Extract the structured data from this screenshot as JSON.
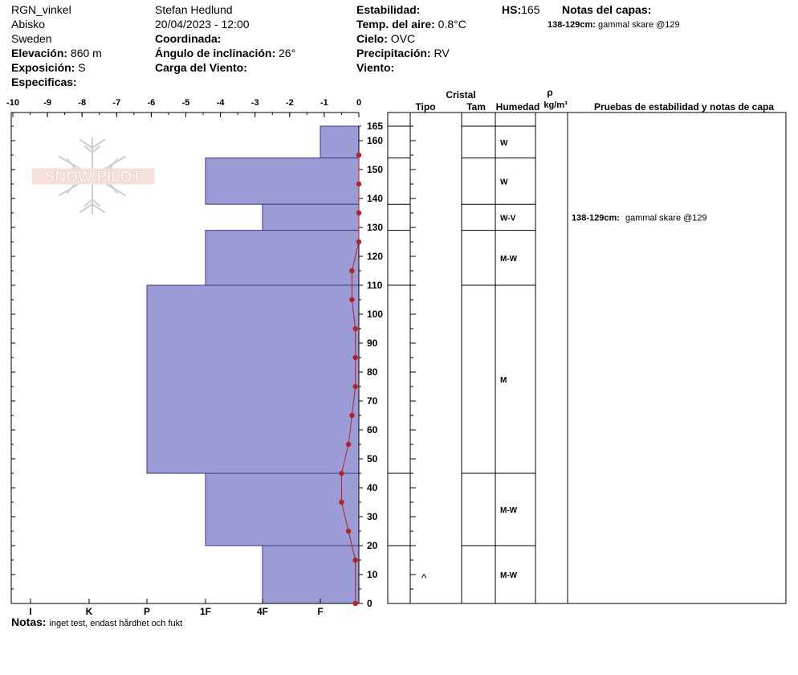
{
  "header": {
    "col1": {
      "location": "RGN_vinkel",
      "region": "Abisko",
      "country": "Sweden",
      "elevation_label": "Elevación:",
      "elevation_value": "860 m",
      "aspect_label": "Exposición:",
      "aspect_value": "S",
      "specifics_label": "Especificas:"
    },
    "col2": {
      "observer": "Stefan Hedlund",
      "datetime": "20/04/2023 - 12:00",
      "coordinates_label": "Coordinada:",
      "slope_label": "Ángulo de inclinación:",
      "slope_value": "26°",
      "wind_load_label": "Carga del Viento:"
    },
    "col3": {
      "stability_label": "Estabilidad:",
      "air_temp_label": "Temp. del aire:",
      "air_temp_value": "0.8°C",
      "sky_label": "Cielo:",
      "sky_value": "OVC",
      "precip_label": "Precipitación:",
      "precip_value": "RV",
      "wind_label": "Viento:"
    },
    "hs_label": "HS:",
    "hs_value": "165",
    "layer_notes_label": "Notas del capas:",
    "layer_notes": [
      {
        "range": "138-129cm:",
        "text": "gammal skare @129"
      }
    ]
  },
  "chart_data": {
    "type": "area",
    "temp_axis": {
      "ticks": [
        -10,
        -9,
        -8,
        -7,
        -6,
        -5,
        -4,
        -3,
        -2,
        -1,
        0
      ],
      "range": [
        -10,
        0
      ]
    },
    "hardness_axis": {
      "labels": [
        "I",
        "K",
        "P",
        "1F",
        "4F",
        "F"
      ],
      "values": [
        5,
        4,
        3,
        2,
        1,
        0.5
      ]
    },
    "depth_axis": {
      "range": [
        0,
        165
      ],
      "ticks": [
        0,
        10,
        20,
        30,
        40,
        50,
        60,
        70,
        80,
        90,
        100,
        110,
        120,
        130,
        140,
        150,
        160
      ],
      "top_label": 165
    },
    "layers": [
      {
        "top": 165,
        "bottom": 154,
        "hardness": "F",
        "hardness_value": 0.5,
        "wetness": "W",
        "grain": ""
      },
      {
        "top": 154,
        "bottom": 138,
        "hardness": "1F",
        "hardness_value": 2,
        "wetness": "W",
        "grain": ""
      },
      {
        "top": 138,
        "bottom": 129,
        "hardness": "4F",
        "hardness_value": 1,
        "wetness": "W-V",
        "grain": ""
      },
      {
        "top": 129,
        "bottom": 110,
        "hardness": "1F",
        "hardness_value": 2,
        "wetness": "M-W",
        "grain": ""
      },
      {
        "top": 110,
        "bottom": 45,
        "hardness": "P",
        "hardness_value": 3,
        "wetness": "M",
        "grain": ""
      },
      {
        "top": 45,
        "bottom": 20,
        "hardness": "1F",
        "hardness_value": 2,
        "wetness": "M-W",
        "grain": ""
      },
      {
        "top": 20,
        "bottom": 0,
        "hardness": "4F",
        "hardness_value": 1,
        "wetness": "M-W",
        "grain": "^"
      }
    ],
    "temperature_profile": [
      {
        "depth": 155,
        "temp": 0
      },
      {
        "depth": 145,
        "temp": 0
      },
      {
        "depth": 135,
        "temp": 0
      },
      {
        "depth": 125,
        "temp": 0
      },
      {
        "depth": 115,
        "temp": -0.2
      },
      {
        "depth": 105,
        "temp": -0.2
      },
      {
        "depth": 95,
        "temp": -0.1
      },
      {
        "depth": 85,
        "temp": -0.1
      },
      {
        "depth": 75,
        "temp": -0.1
      },
      {
        "depth": 65,
        "temp": -0.2
      },
      {
        "depth": 55,
        "temp": -0.3
      },
      {
        "depth": 45,
        "temp": -0.5
      },
      {
        "depth": 35,
        "temp": -0.5
      },
      {
        "depth": 25,
        "temp": -0.3
      },
      {
        "depth": 15,
        "temp": -0.1
      },
      {
        "depth": 0,
        "temp": -0.1
      }
    ],
    "layer_note_depth": 129,
    "colors": {
      "layer_fill": "#9b9bd6",
      "layer_stroke": "#3a3a8a",
      "temp_line": "#b22222"
    }
  },
  "table_headers": {
    "crystal": "Cristal",
    "type": "Tipo",
    "size": "Tam",
    "moisture": "Humedad",
    "rho": "ρ",
    "density_unit": "kg/m³",
    "tests": "Pruebas de estabilidad y notas de capa"
  },
  "logo_text": "SNOW PILOT",
  "notes": {
    "label": "Notas:",
    "text": "inget test, endast hårdhet och fukt"
  }
}
